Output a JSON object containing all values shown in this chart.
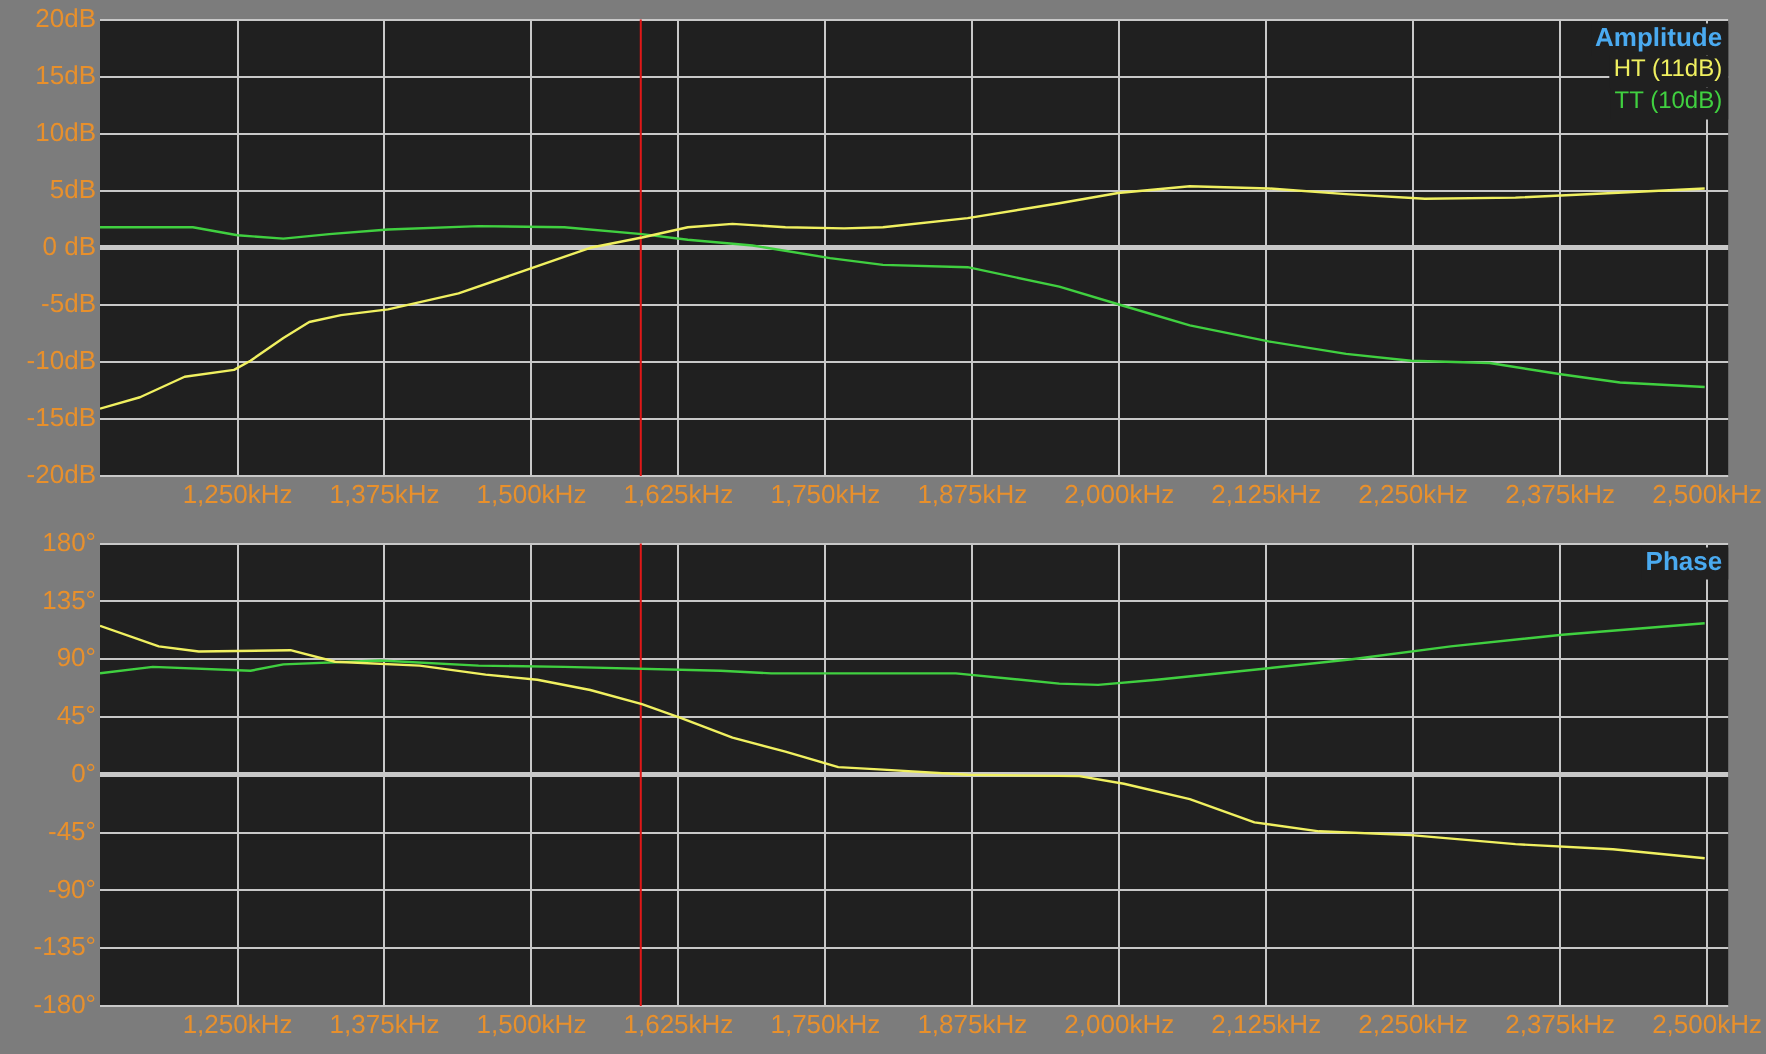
{
  "chart_data": [
    {
      "type": "line",
      "title": "Amplitude",
      "legend": "top right",
      "grid": true,
      "marker": "none",
      "line_style": "solid",
      "xlim": [
        1133,
        2518
      ],
      "xticks": [
        {
          "value": 1250,
          "label": "1,250kHz"
        },
        {
          "value": 1375,
          "label": "1,375kHz"
        },
        {
          "value": 1500,
          "label": "1,500kHz"
        },
        {
          "value": 1625,
          "label": "1,625kHz"
        },
        {
          "value": 1750,
          "label": "1,750kHz"
        },
        {
          "value": 1875,
          "label": "1,875kHz"
        },
        {
          "value": 2000,
          "label": "2,000kHz"
        },
        {
          "value": 2125,
          "label": "2,125kHz"
        },
        {
          "value": 2250,
          "label": "2,250kHz"
        },
        {
          "value": 2375,
          "label": "2,375kHz"
        },
        {
          "value": 2500,
          "label": "2,500kHz"
        }
      ],
      "ylim": [
        -20,
        20
      ],
      "yticks": [
        {
          "value": -20,
          "label": "-20dB"
        },
        {
          "value": -15,
          "label": "-15dB"
        },
        {
          "value": -10,
          "label": "-10dB"
        },
        {
          "value": -5,
          "label": "-5dB"
        },
        {
          "value": 0,
          "label": "0 dB"
        },
        {
          "value": 5,
          "label": "5dB"
        },
        {
          "value": 10,
          "label": "10dB"
        },
        {
          "value": 15,
          "label": "15dB"
        },
        {
          "value": 20,
          "label": "20dB"
        }
      ],
      "ref_lines": [
        {
          "axis": "x",
          "value": 1593,
          "color": "#e01818"
        }
      ],
      "series": [
        {
          "name": "HT (11dB)",
          "color": "#f0f060",
          "x": [
            1133,
            1167,
            1205,
            1247,
            1261,
            1289,
            1311,
            1338,
            1378,
            1438,
            1494,
            1550,
            1594,
            1633,
            1671,
            1716,
            1766,
            1799,
            1871,
            1949,
            1999,
            2060,
            2127,
            2193,
            2260,
            2337,
            2420,
            2498
          ],
          "values": [
            -14.1,
            -13.1,
            -11.3,
            -10.7,
            -9.9,
            -7.9,
            -6.5,
            -5.9,
            -5.4,
            -4.0,
            -2.0,
            0.0,
            0.9,
            1.8,
            2.1,
            1.8,
            1.7,
            1.8,
            2.6,
            3.9,
            4.8,
            5.4,
            5.2,
            4.7,
            4.3,
            4.4,
            4.8,
            5.2
          ]
        },
        {
          "name": "TT (10dB)",
          "color": "#40d040",
          "x": [
            1133,
            1212,
            1250,
            1289,
            1328,
            1378,
            1455,
            1528,
            1594,
            1633,
            1688,
            1754,
            1799,
            1871,
            1949,
            2004,
            2060,
            2127,
            2193,
            2248,
            2315,
            2377,
            2426,
            2498
          ],
          "values": [
            1.8,
            1.8,
            1.1,
            0.8,
            1.2,
            1.6,
            1.9,
            1.8,
            1.2,
            0.7,
            0.2,
            -0.9,
            -1.5,
            -1.7,
            -3.4,
            -5.1,
            -6.8,
            -8.2,
            -9.3,
            -9.9,
            -10.1,
            -11.1,
            -11.8,
            -12.2
          ]
        }
      ]
    },
    {
      "type": "line",
      "title": "Phase",
      "grid": true,
      "marker": "none",
      "line_style": "solid",
      "xlim": [
        1133,
        2518
      ],
      "xticks": [
        {
          "value": 1250,
          "label": "1,250kHz"
        },
        {
          "value": 1375,
          "label": "1,375kHz"
        },
        {
          "value": 1500,
          "label": "1,500kHz"
        },
        {
          "value": 1625,
          "label": "1,625kHz"
        },
        {
          "value": 1750,
          "label": "1,750kHz"
        },
        {
          "value": 1875,
          "label": "1,875kHz"
        },
        {
          "value": 2000,
          "label": "2,000kHz"
        },
        {
          "value": 2125,
          "label": "2,125kHz"
        },
        {
          "value": 2250,
          "label": "2,250kHz"
        },
        {
          "value": 2375,
          "label": "2,375kHz"
        },
        {
          "value": 2500,
          "label": "2,500kHz"
        }
      ],
      "ylim": [
        -180,
        180
      ],
      "yticks": [
        {
          "value": -180,
          "label": "-180°"
        },
        {
          "value": -135,
          "label": "-135°"
        },
        {
          "value": -90,
          "label": "-90°"
        },
        {
          "value": -45,
          "label": "-45°"
        },
        {
          "value": 0,
          "label": "0°"
        },
        {
          "value": 45,
          "label": "45°"
        },
        {
          "value": 90,
          "label": "90°"
        },
        {
          "value": 135,
          "label": "135°"
        },
        {
          "value": 180,
          "label": "180°"
        }
      ],
      "ref_lines": [
        {
          "axis": "x",
          "value": 1593,
          "color": "#e01818"
        }
      ],
      "series": [
        {
          "color": "#f0f060",
          "x": [
            1133,
            1183,
            1217,
            1295,
            1333,
            1405,
            1461,
            1505,
            1550,
            1594,
            1628,
            1671,
            1716,
            1761,
            1799,
            1871,
            1966,
            2004,
            2060,
            2115,
            2170,
            2248,
            2337,
            2420,
            2498
          ],
          "values": [
            116,
            100,
            96,
            97,
            88,
            85,
            78,
            74,
            66,
            55,
            44,
            29,
            18,
            6,
            4,
            0,
            -1,
            -7,
            -19,
            -37,
            -44,
            -47,
            -54,
            -58,
            -65
          ]
        },
        {
          "color": "#40d040",
          "x": [
            1133,
            1178,
            1261,
            1289,
            1371,
            1455,
            1528,
            1661,
            1704,
            1799,
            1861,
            1949,
            1982,
            2032,
            2127,
            2198,
            2282,
            2377,
            2498
          ],
          "values": [
            79,
            84,
            81,
            86,
            89,
            85,
            84,
            81,
            79,
            79,
            79,
            71,
            70,
            74,
            83,
            90,
            100,
            109,
            118
          ]
        }
      ]
    }
  ]
}
